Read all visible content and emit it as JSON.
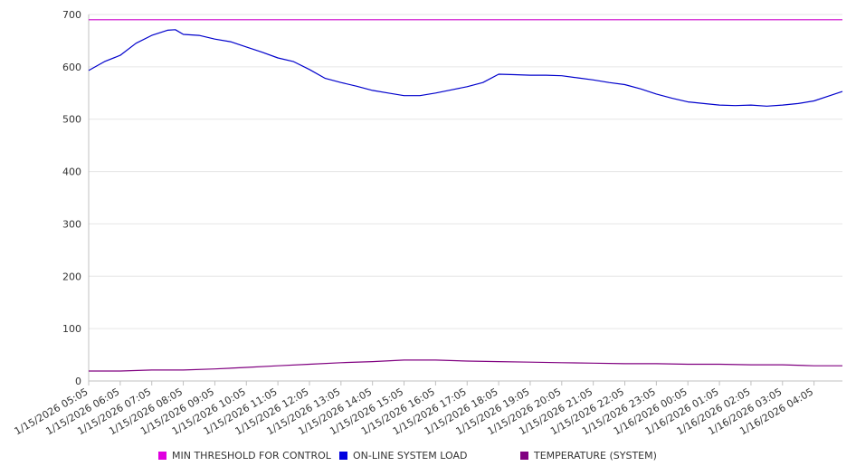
{
  "chart_data": {
    "type": "line",
    "title": "",
    "xlabel": "",
    "ylabel": "",
    "ylim": [
      0,
      700
    ],
    "y_ticks": [
      "0",
      "100",
      "200",
      "300",
      "400",
      "500",
      "600",
      "700"
    ],
    "x_ticks": [
      "1/15/2026 05:05",
      "1/15/2026 06:05",
      "1/15/2026 07:05",
      "1/15/2026 08:05",
      "1/15/2026 09:05",
      "1/15/2026 10:05",
      "1/15/2026 11:05",
      "1/15/2026 12:05",
      "1/15/2026 13:05",
      "1/15/2026 14:05",
      "1/15/2026 15:05",
      "1/15/2026 16:05",
      "1/15/2026 17:05",
      "1/15/2026 18:05",
      "1/15/2026 19:05",
      "1/15/2026 20:05",
      "1/15/2026 21:05",
      "1/15/2026 22:05",
      "1/15/2026 23:05",
      "1/16/2026 00:05",
      "1/16/2026 01:05",
      "1/16/2026 02:05",
      "1/16/2026 03:05",
      "1/16/2026 04:05"
    ],
    "x_hours_end": 23.9,
    "grid": true,
    "legend_position": "bottom",
    "series": [
      {
        "name": "MIN THRESHOLD FOR CONTROL",
        "color": "#cc00cc",
        "x": [
          0,
          23.9
        ],
        "values": [
          690,
          690
        ]
      },
      {
        "name": "ON-LINE SYSTEM LOAD",
        "color": "#0000cc",
        "x": [
          0,
          0.5,
          1,
          1.5,
          2,
          2.5,
          2.75,
          3,
          3.5,
          4,
          4.5,
          5,
          5.5,
          6,
          6.5,
          7,
          7.5,
          8,
          8.5,
          9,
          9.5,
          10,
          10.5,
          11,
          11.5,
          12,
          12.5,
          13,
          13.5,
          14,
          14.5,
          15,
          15.5,
          16,
          16.5,
          17,
          17.5,
          18,
          18.5,
          19,
          19.5,
          20,
          20.5,
          21,
          21.5,
          22,
          22.5,
          23,
          23.5,
          23.9
        ],
        "values": [
          593,
          610,
          622,
          645,
          660,
          670,
          671,
          662,
          660,
          653,
          648,
          638,
          628,
          617,
          610,
          595,
          578,
          570,
          563,
          555,
          550,
          545,
          545,
          550,
          556,
          562,
          570,
          586,
          585,
          584,
          584,
          583,
          579,
          575,
          570,
          566,
          558,
          548,
          540,
          533,
          530,
          527,
          526,
          527,
          525,
          527,
          530,
          535,
          545,
          553
        ]
      },
      {
        "name": "TEMPERATURE (SYSTEM)",
        "color": "#800080",
        "x": [
          0,
          1,
          2,
          3,
          4,
          5,
          6,
          7,
          8,
          9,
          10,
          11,
          12,
          13,
          14,
          15,
          16,
          17,
          18,
          19,
          20,
          21,
          22,
          23,
          23.9
        ],
        "values": [
          19,
          19,
          21,
          21,
          23,
          26,
          29,
          32,
          35,
          37,
          40,
          40,
          38,
          37,
          36,
          35,
          34,
          33,
          33,
          32,
          32,
          31,
          31,
          29,
          29
        ]
      }
    ]
  },
  "colors": {
    "grid": "#e6e6e6",
    "axis": "#c0c0c0",
    "text": "#333333"
  }
}
